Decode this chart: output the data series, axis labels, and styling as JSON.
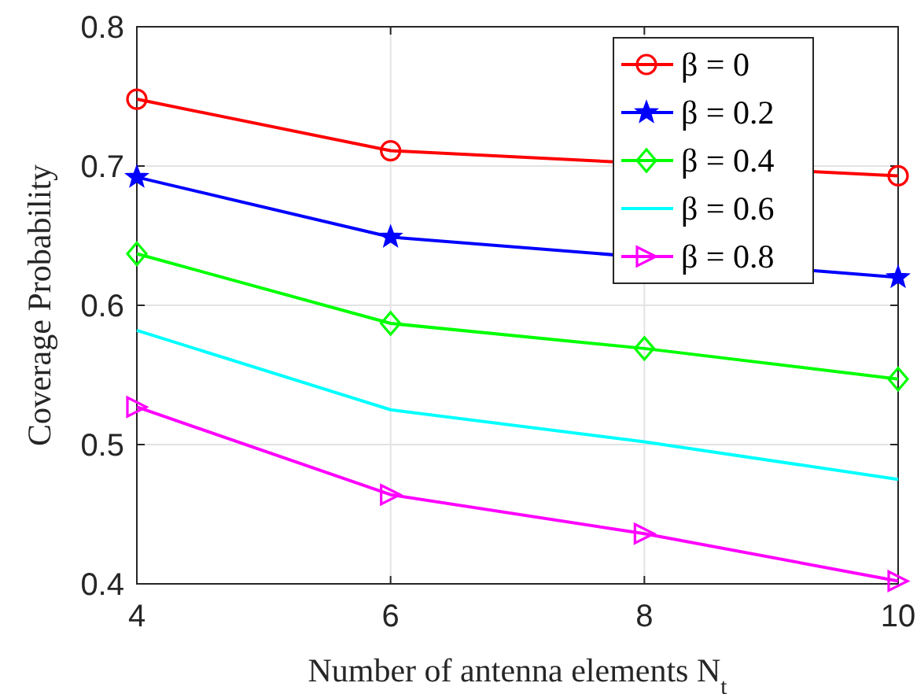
{
  "chart_data": {
    "type": "line",
    "xlabel": "Number of antenna elements N$_{t}$",
    "ylabel": "Coverage Probability",
    "x": [
      4,
      6,
      8,
      10
    ],
    "xlim": [
      4,
      10
    ],
    "xticks": [
      4,
      6,
      8,
      10
    ],
    "ylim": [
      0.4,
      0.8
    ],
    "yticks": [
      0.4,
      0.5,
      0.6,
      0.7,
      0.8
    ],
    "grid": true,
    "legend": "top right",
    "line_style": "solid",
    "series": [
      {
        "name": "β = 0",
        "color": "#ff0000",
        "marker": "circle",
        "values": [
          0.748,
          0.711,
          null,
          0.693
        ]
      },
      {
        "name": "β = 0.2",
        "color": "#0000ff",
        "marker": "star",
        "values": [
          0.692,
          0.649,
          null,
          0.62
        ]
      },
      {
        "name": "β = 0.4",
        "color": "#00ff00",
        "marker": "diamond",
        "values": [
          0.637,
          0.587,
          0.569,
          0.547
        ]
      },
      {
        "name": "β = 0.6",
        "color": "#00ffff",
        "marker": "none",
        "values": [
          0.582,
          0.525,
          0.502,
          0.475
        ]
      },
      {
        "name": "β = 0.8",
        "color": "#ff00ff",
        "marker": "triangle",
        "values": [
          0.527,
          0.464,
          0.436,
          0.402
        ]
      }
    ]
  }
}
